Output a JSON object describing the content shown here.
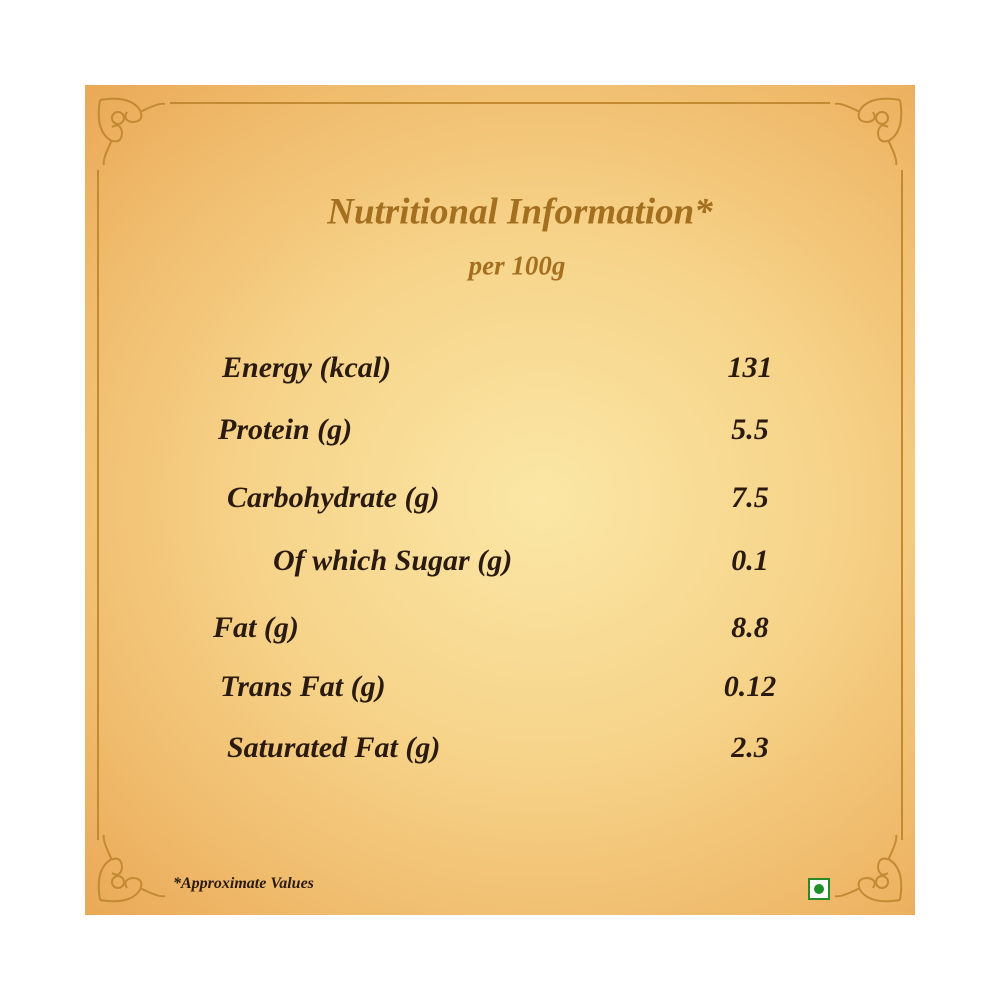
{
  "title": "Nutritional Information*",
  "subtitle": "per 100g",
  "table": {
    "rows": [
      [
        "Energy (kcal)",
        131
      ],
      [
        "Protein (g)",
        5.5
      ],
      [
        "Carbohydrate (g)",
        7.5
      ],
      [
        "Of which Sugar (g)",
        0.1
      ],
      [
        "Fat (g)",
        8.8
      ],
      [
        "Trans Fat (g)",
        0.12
      ],
      [
        "Saturated Fat (g)",
        2.3
      ]
    ]
  },
  "footnote": "*Approximate Values"
}
